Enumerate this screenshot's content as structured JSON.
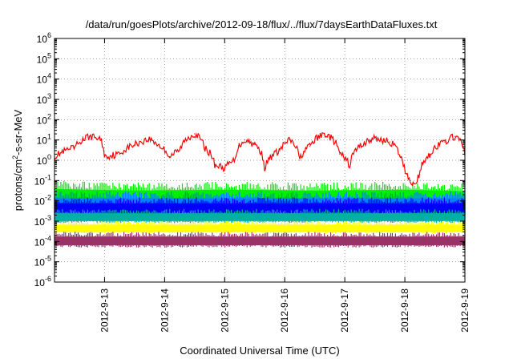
{
  "chart_data": {
    "type": "line",
    "title": "/data/run/goesPlots/archive/2012-09-18/flux/../flux/7daysEarthDataFluxes.txt",
    "xlabel": "Coordinated Universal Time (UTC)",
    "ylabel": "protons/cm2-s-sr-MeV",
    "ylabel_parts": {
      "base": "protons/cm",
      "sup": "2",
      "rest": "-s-sr-MeV"
    },
    "xscale": "date",
    "yscale": "log",
    "xlim": [
      "2012-09-12T04:00",
      "2012-09-19T00:00"
    ],
    "ylim": [
      1e-06,
      1000000.0
    ],
    "x_ticks": [
      "2012-9-13",
      "2012-9-14",
      "2012-9-15",
      "2012-9-16",
      "2012-9-17",
      "2012-9-18",
      "2012-9-19"
    ],
    "y_ticks": [
      {
        "value": 1e-06,
        "base": "10",
        "exp": "-6"
      },
      {
        "value": 1e-05,
        "base": "10",
        "exp": "-5"
      },
      {
        "value": 0.0001,
        "base": "10",
        "exp": "-4"
      },
      {
        "value": 0.001,
        "base": "10",
        "exp": "-3"
      },
      {
        "value": 0.01,
        "base": "10",
        "exp": "-2"
      },
      {
        "value": 0.1,
        "base": "10",
        "exp": "-1"
      },
      {
        "value": 1.0,
        "base": "10",
        "exp": "0"
      },
      {
        "value": 10.0,
        "base": "10",
        "exp": "1"
      },
      {
        "value": 100.0,
        "base": "10",
        "exp": "2"
      },
      {
        "value": 1000.0,
        "base": "10",
        "exp": "3"
      },
      {
        "value": 10000.0,
        "base": "10",
        "exp": "4"
      },
      {
        "value": 100000.0,
        "base": "10",
        "exp": "5"
      },
      {
        "value": 1000000.0,
        "base": "10",
        "exp": "6"
      }
    ],
    "grid": true,
    "grid_style": "dotted",
    "series": [
      {
        "color": "#ff0000",
        "band": false,
        "x": [
          "2012-09-12T04:00",
          "2012-09-12T12:00",
          "2012-09-12T18:00",
          "2012-09-12T22:00",
          "2012-09-13T00:00",
          "2012-09-13T06:00",
          "2012-09-13T12:00",
          "2012-09-13T18:00",
          "2012-09-13T22:00",
          "2012-09-14T02:00",
          "2012-09-14T06:00",
          "2012-09-14T12:00",
          "2012-09-14T16:00",
          "2012-09-14T20:00",
          "2012-09-15T00:00",
          "2012-09-15T04:00",
          "2012-09-15T08:00",
          "2012-09-15T12:00",
          "2012-09-15T16:00",
          "2012-09-15T22:00",
          "2012-09-16T02:00",
          "2012-09-16T06:00",
          "2012-09-16T10:00",
          "2012-09-16T16:00",
          "2012-09-16T22:00",
          "2012-09-17T02:00",
          "2012-09-17T06:00",
          "2012-09-17T12:00",
          "2012-09-17T18:00",
          "2012-09-17T22:00",
          "2012-09-18T00:00",
          "2012-09-18T02:00",
          "2012-09-18T04:00",
          "2012-09-18T06:00",
          "2012-09-18T10:00",
          "2012-09-18T16:00",
          "2012-09-18T20:00",
          "2012-09-19T00:00"
        ],
        "y": [
          1.5,
          4,
          15,
          12,
          1.5,
          2,
          6,
          11,
          5,
          1.5,
          3,
          20,
          4,
          0.6,
          0.4,
          1,
          10,
          6,
          0.35,
          3,
          10,
          1,
          5,
          20,
          2,
          0.5,
          5,
          12,
          8,
          1.5,
          0.3,
          0.1,
          0.05,
          0.2,
          2,
          8,
          15,
          2
        ]
      },
      {
        "color": "#00ee00",
        "band": true,
        "x": [
          "2012-09-12T04:00",
          "2012-09-13T12:00",
          "2012-09-15T00:00",
          "2012-09-16T12:00",
          "2012-09-18T00:00",
          "2012-09-19T00:00"
        ],
        "y_low": [
          0.004,
          0.004,
          0.004,
          0.004,
          0.004,
          0.004
        ],
        "y_high": [
          0.1,
          0.08,
          0.09,
          0.08,
          0.09,
          0.07
        ]
      },
      {
        "color": "#0080ff",
        "band": true,
        "x": [
          "2012-09-12T04:00",
          "2012-09-13T12:00",
          "2012-09-15T00:00",
          "2012-09-16T12:00",
          "2012-09-18T00:00",
          "2012-09-19T00:00"
        ],
        "y_low": [
          0.002,
          0.002,
          0.002,
          0.002,
          0.002,
          0.002
        ],
        "y_high": [
          0.03,
          0.03,
          0.03,
          0.03,
          0.03,
          0.03
        ]
      },
      {
        "color": "#0000ff",
        "band": true,
        "x": [
          "2012-09-12T04:00",
          "2012-09-13T12:00",
          "2012-09-15T00:00",
          "2012-09-16T12:00",
          "2012-09-18T00:00",
          "2012-09-19T00:00"
        ],
        "y_low": [
          0.0015,
          0.0015,
          0.0015,
          0.0015,
          0.0015,
          0.0015
        ],
        "y_high": [
          0.015,
          0.015,
          0.015,
          0.015,
          0.015,
          0.015
        ]
      },
      {
        "color": "#00b0a0",
        "band": true,
        "x": [
          "2012-09-12T04:00",
          "2012-09-13T12:00",
          "2012-09-15T00:00",
          "2012-09-16T12:00",
          "2012-09-18T00:00",
          "2012-09-19T00:00"
        ],
        "y_low": [
          0.0008,
          0.0008,
          0.0008,
          0.0008,
          0.0008,
          0.0008
        ],
        "y_high": [
          0.004,
          0.004,
          0.004,
          0.004,
          0.004,
          0.004
        ]
      },
      {
        "color": "#ffff00",
        "band": true,
        "x": [
          "2012-09-12T04:00",
          "2012-09-13T12:00",
          "2012-09-15T00:00",
          "2012-09-16T12:00",
          "2012-09-18T00:00",
          "2012-09-19T00:00"
        ],
        "y_low": [
          0.00025,
          0.00025,
          0.00025,
          0.00025,
          0.00025,
          0.00025
        ],
        "y_high": [
          0.001,
          0.001,
          0.001,
          0.001,
          0.001,
          0.001
        ]
      },
      {
        "color": "#993366",
        "band": true,
        "x": [
          "2012-09-12T04:00",
          "2012-09-13T12:00",
          "2012-09-15T00:00",
          "2012-09-16T12:00",
          "2012-09-18T00:00",
          "2012-09-19T00:00"
        ],
        "y_low": [
          5e-05,
          5e-05,
          5e-05,
          5e-05,
          5e-05,
          5e-05
        ],
        "y_high": [
          0.0003,
          0.0003,
          0.0003,
          0.0003,
          0.0003,
          0.0003
        ]
      }
    ]
  }
}
